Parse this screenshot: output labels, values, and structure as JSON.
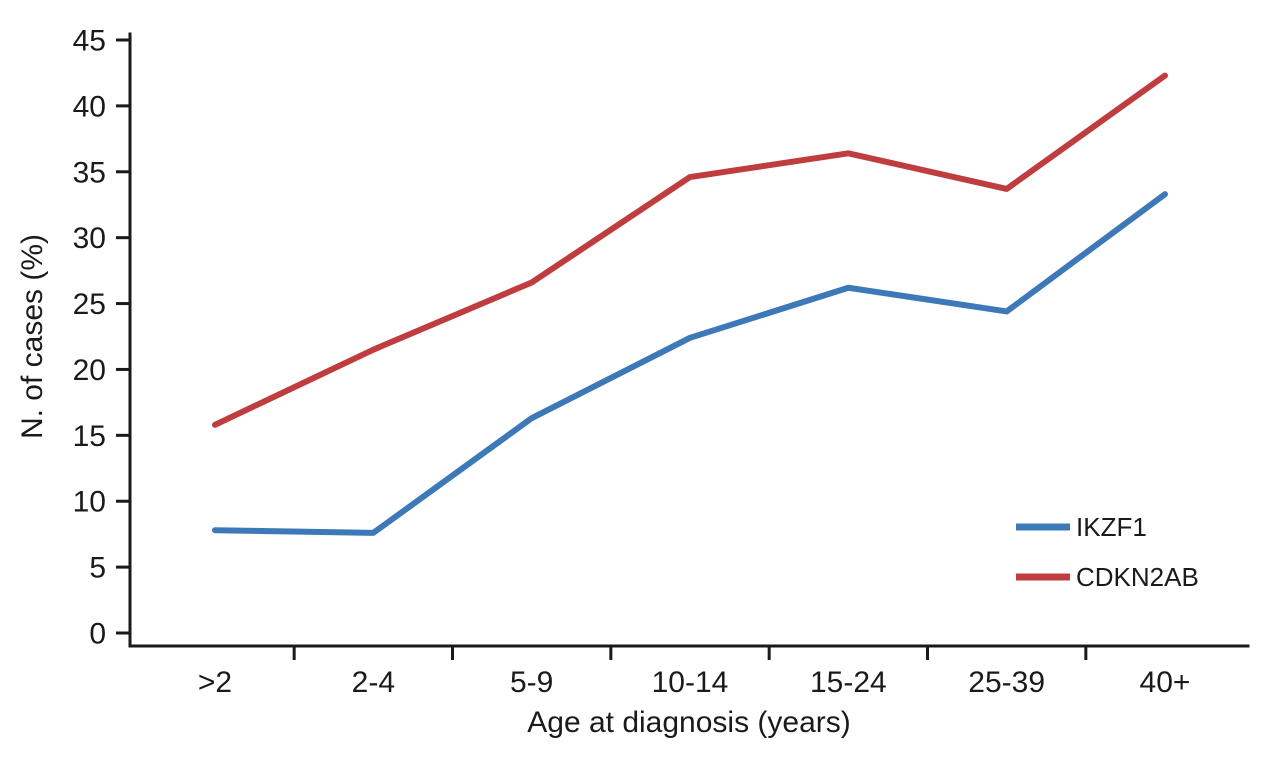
{
  "chart_data": {
    "type": "line",
    "title": "",
    "xlabel": "Age at diagnosis (years)",
    "ylabel": "N. of cases (%)",
    "categories": [
      ">2",
      "2-4",
      "5-9",
      "10-14",
      "15-24",
      "25-39",
      "40+"
    ],
    "series": [
      {
        "name": "IKZF1",
        "color": "#3d79b8",
        "values": [
          7.8,
          7.6,
          16.3,
          22.4,
          26.2,
          24.4,
          33.3
        ]
      },
      {
        "name": "CDKN2AB",
        "color": "#bf3d3f",
        "values": [
          15.8,
          21.5,
          26.6,
          34.6,
          36.4,
          33.7,
          42.3
        ]
      }
    ],
    "ylim": [
      0,
      45
    ],
    "ytick_step": 5,
    "grid": false,
    "legend_position": "bottom-right",
    "axis_color": "#1a1a1a"
  }
}
